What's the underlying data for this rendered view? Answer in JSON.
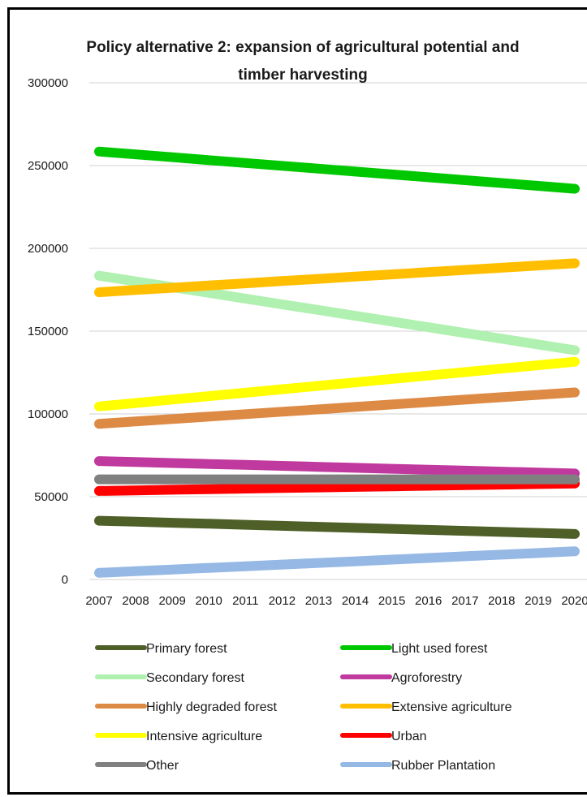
{
  "chart_data": {
    "type": "line",
    "title": "Policy alternative 2: expansion of agricultural  potential and",
    "title_line2": "timber harvesting",
    "xlabel": "",
    "ylabel": "",
    "x": [
      2007,
      2008,
      2009,
      2010,
      2011,
      2012,
      2013,
      2014,
      2015,
      2016,
      2017,
      2018,
      2019,
      2020
    ],
    "ylim": [
      0,
      300000
    ],
    "y_ticks": [
      "0",
      "50000",
      "100000",
      "150000",
      "200000",
      "250000",
      "300000"
    ],
    "x_ticks": [
      "2007",
      "2008",
      "2009",
      "2010",
      "2011",
      "2012",
      "2013",
      "2014",
      "2015",
      "2016",
      "2017",
      "2018",
      "2019",
      "2020"
    ],
    "grid": true,
    "legend_position": "bottom",
    "series": [
      {
        "name": "Primary forest",
        "color": "#4e5f28",
        "start": 35500,
        "end": 27500
      },
      {
        "name": "Light used forest",
        "color": "#00c800",
        "start": 258500,
        "end": 236000
      },
      {
        "name": "Secondary forest",
        "color": "#b0f0b0",
        "start": 183500,
        "end": 138500
      },
      {
        "name": "Agroforestry",
        "color": "#c0399e",
        "start": 71500,
        "end": 64000
      },
      {
        "name": "Highly degraded forest",
        "color": "#dd8a44",
        "start": 94000,
        "end": 113000
      },
      {
        "name": "Extensive agriculture",
        "color": "#ffbe00",
        "start": 173500,
        "end": 191000
      },
      {
        "name": "Intensive agriculture",
        "color": "#ffff00",
        "start": 104500,
        "end": 131500
      },
      {
        "name": "Urban",
        "color": "#ff0000",
        "start": 53500,
        "end": 58000
      },
      {
        "name": "Other",
        "color": "#808080",
        "start": 60500,
        "end": 60500
      },
      {
        "name": "Rubber Plantation",
        "color": "#95b8e4",
        "start": 4000,
        "end": 17000
      }
    ]
  }
}
